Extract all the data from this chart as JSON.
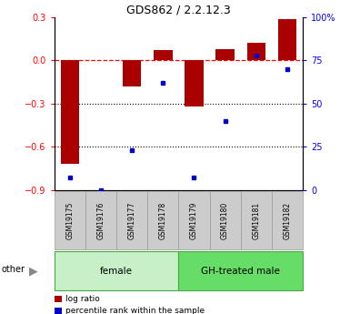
{
  "title": "GDS862 / 2.2.12.3",
  "samples": [
    "GSM19175",
    "GSM19176",
    "GSM19177",
    "GSM19178",
    "GSM19179",
    "GSM19180",
    "GSM19181",
    "GSM19182"
  ],
  "log_ratios": [
    -0.72,
    0.0,
    -0.18,
    0.07,
    -0.32,
    0.08,
    0.12,
    0.29
  ],
  "percentile_ranks": [
    7,
    0,
    23,
    62,
    7,
    40,
    78,
    70
  ],
  "groups": [
    {
      "label": "female",
      "start": 0,
      "end": 4,
      "color": "#c8f0c8"
    },
    {
      "label": "GH-treated male",
      "start": 4,
      "end": 8,
      "color": "#66dd66"
    }
  ],
  "bar_color": "#aa0000",
  "dot_color": "#0000cc",
  "ylim_left": [
    -0.9,
    0.3
  ],
  "ylim_right": [
    0,
    100
  ],
  "yticks_left": [
    -0.9,
    -0.6,
    -0.3,
    0.0,
    0.3
  ],
  "yticks_right": [
    0,
    25,
    50,
    75,
    100
  ],
  "ytick_labels_right": [
    "0",
    "25",
    "50",
    "75",
    "100%"
  ],
  "hline_dotted": [
    -0.3,
    -0.6
  ],
  "hline_dashed": 0.0,
  "legend_items": [
    {
      "label": "log ratio",
      "color": "#aa0000"
    },
    {
      "label": "percentile rank within the sample",
      "color": "#0000cc"
    }
  ],
  "other_label": "other",
  "sample_box_color": "#cccccc",
  "sample_box_edge": "#999999",
  "group_edge_color": "#44aa44",
  "background_color": "#ffffff"
}
